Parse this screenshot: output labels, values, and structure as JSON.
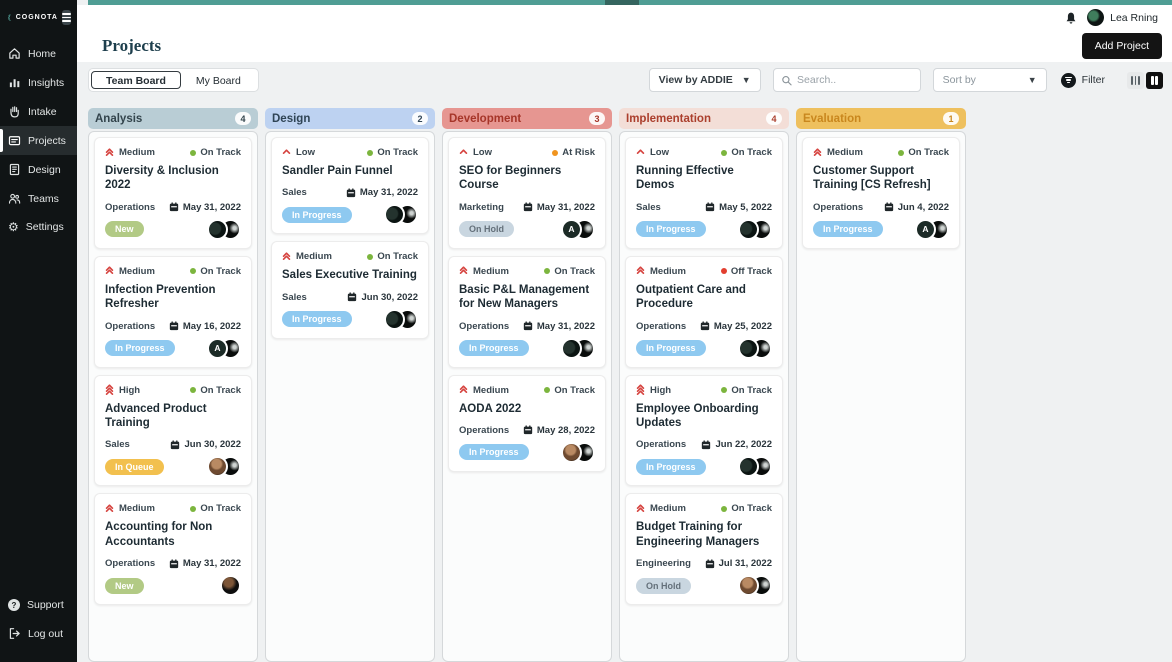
{
  "topbar": {
    "user_name": "Lea Rning"
  },
  "sidebar": {
    "logo_text": "COGNOTA",
    "items": [
      {
        "label": "Home"
      },
      {
        "label": "Insights"
      },
      {
        "label": "Intake"
      },
      {
        "label": "Projects",
        "active": true
      },
      {
        "label": "Design"
      },
      {
        "label": "Teams"
      },
      {
        "label": "Settings"
      }
    ],
    "footer_items": [
      {
        "label": "Support"
      },
      {
        "label": "Log out"
      }
    ]
  },
  "header": {
    "title": "Projects",
    "add_button_label": "Add Project"
  },
  "toolbar": {
    "tabs": [
      {
        "label": "Team Board"
      },
      {
        "label": "My Board"
      }
    ],
    "view_by_label": "View by ADDIE",
    "search_placeholder": "Search..",
    "sort_by_label": "Sort by",
    "filter_label": "Filter"
  },
  "board": {
    "columns": [
      {
        "name": "Analysis",
        "count": "4",
        "cards": [
          {
            "priority": "Medium",
            "status": "On Track",
            "title": "Diversity & Inclusion 2022",
            "department": "Operations",
            "date": "May 31, 2022",
            "badge": "New",
            "avatars": [
              {
                "type": "dark"
              },
              {
                "type": "dark2"
              }
            ]
          },
          {
            "priority": "Medium",
            "status": "On Track",
            "title": "Infection Prevention Refresher",
            "department": "Operations",
            "date": "May 16, 2022",
            "badge": "In Progress",
            "avatars": [
              {
                "type": "letter",
                "label": "A"
              },
              {
                "type": "dark2"
              }
            ]
          },
          {
            "priority": "High",
            "status": "On Track",
            "title": "Advanced Product Training",
            "department": "Sales",
            "date": "Jun 30, 2022",
            "badge": "In Queue",
            "avatars": [
              {
                "type": "photo"
              },
              {
                "type": "dark2"
              }
            ]
          },
          {
            "priority": "Medium",
            "status": "On Track",
            "title": "Accounting for Non Accountants",
            "department": "Operations",
            "date": "May 31, 2022",
            "badge": "New",
            "avatars": [
              {
                "type": "photodark"
              }
            ]
          }
        ]
      },
      {
        "name": "Design",
        "count": "2",
        "cards": [
          {
            "priority": "Low",
            "status": "On Track",
            "title": "Sandler Pain Funnel",
            "department": "Sales",
            "date": "May 31, 2022",
            "badge": "In Progress",
            "avatars": [
              {
                "type": "dark"
              },
              {
                "type": "dark2"
              }
            ]
          },
          {
            "priority": "Medium",
            "status": "On Track",
            "title": "Sales Executive Training",
            "department": "Sales",
            "date": "Jun 30, 2022",
            "badge": "In Progress",
            "avatars": [
              {
                "type": "dark"
              },
              {
                "type": "dark2"
              }
            ]
          }
        ]
      },
      {
        "name": "Development",
        "count": "3",
        "cards": [
          {
            "priority": "Low",
            "status": "At Risk",
            "title": "SEO for Beginners Course",
            "department": "Marketing",
            "date": "May 31, 2022",
            "badge": "On Hold",
            "avatars": [
              {
                "type": "letter",
                "label": "A"
              },
              {
                "type": "dark2"
              }
            ]
          },
          {
            "priority": "Medium",
            "status": "On Track",
            "title": "Basic P&L Management for New Managers",
            "department": "Operations",
            "date": "May 31, 2022",
            "badge": "In Progress",
            "avatars": [
              {
                "type": "dark"
              },
              {
                "type": "dark2"
              }
            ]
          },
          {
            "priority": "Medium",
            "status": "On Track",
            "title": "AODA 2022",
            "department": "Operations",
            "date": "May 28, 2022",
            "badge": "In Progress",
            "avatars": [
              {
                "type": "photo"
              },
              {
                "type": "dark2"
              }
            ]
          }
        ]
      },
      {
        "name": "Implementation",
        "count": "4",
        "cards": [
          {
            "priority": "Low",
            "status": "On Track",
            "title": "Running Effective Demos",
            "department": "Sales",
            "date": "May 5, 2022",
            "badge": "In Progress",
            "avatars": [
              {
                "type": "dark"
              },
              {
                "type": "dark2"
              }
            ]
          },
          {
            "priority": "Medium",
            "status": "Off Track",
            "title": "Outpatient Care and Procedure",
            "department": "Operations",
            "date": "May 25, 2022",
            "badge": "In Progress",
            "avatars": [
              {
                "type": "dark"
              },
              {
                "type": "dark2"
              }
            ]
          },
          {
            "priority": "High",
            "status": "On Track",
            "title": "Employee Onboarding Updates",
            "department": "Operations",
            "date": "Jun 22, 2022",
            "badge": "In Progress",
            "avatars": [
              {
                "type": "dark"
              },
              {
                "type": "dark2"
              }
            ]
          },
          {
            "priority": "Medium",
            "status": "On Track",
            "title": "Budget Training for Engineering Managers",
            "department": "Engineering",
            "date": "Jul 31, 2022",
            "badge": "On Hold",
            "avatars": [
              {
                "type": "photo"
              },
              {
                "type": "dark2"
              }
            ]
          }
        ]
      },
      {
        "name": "Evaluation",
        "count": "1",
        "cards": [
          {
            "priority": "Medium",
            "status": "On Track",
            "title": "Customer Support Training [CS Refresh]",
            "department": "Operations",
            "date": "Jun 4, 2022",
            "badge": "In Progress",
            "avatars": [
              {
                "type": "letter",
                "label": "A"
              },
              {
                "type": "dark2"
              }
            ]
          }
        ]
      }
    ]
  },
  "colors": {
    "brand_teal": "#4f9d94",
    "on_track_dot": "#7cb53e",
    "at_risk_dot": "#f0941f",
    "off_track_dot": "#e23e2f",
    "priority_icon": "#d64541",
    "badge_new": "#b2ca85",
    "badge_in_progress": "#8ec9f0",
    "badge_in_queue": "#f2c04e",
    "badge_on_hold": "#c9d6e0",
    "column_analysis": "#b9cdd5",
    "column_design": "#bdd2f1",
    "column_development": "#e69691",
    "column_implementation": "#f3ded7",
    "column_evaluation": "#eec05e"
  }
}
